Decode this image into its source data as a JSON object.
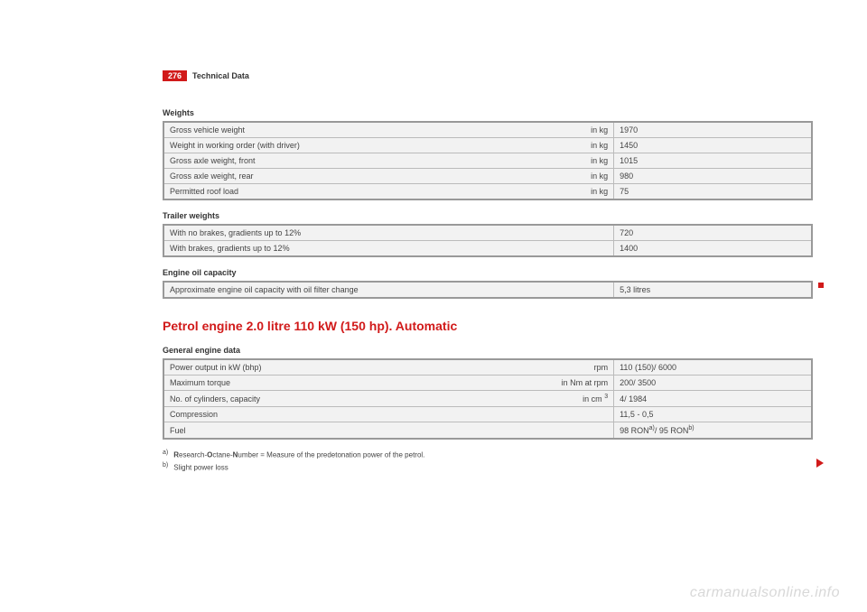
{
  "page": {
    "number": "276",
    "section": "Technical Data"
  },
  "weights": {
    "title": "Weights",
    "rows": [
      {
        "label": "Gross vehicle weight",
        "unit": "in kg",
        "value": "1970"
      },
      {
        "label": "Weight in working order (with driver)",
        "unit": "in kg",
        "value": "1450"
      },
      {
        "label": "Gross axle weight, front",
        "unit": "in kg",
        "value": "1015"
      },
      {
        "label": "Gross axle weight, rear",
        "unit": "in kg",
        "value": "980"
      },
      {
        "label": "Permitted roof load",
        "unit": "in kg",
        "value": "75"
      }
    ]
  },
  "trailer": {
    "title": "Trailer weights",
    "rows": [
      {
        "label": "With no brakes, gradients up to 12%",
        "unit": "",
        "value": "720"
      },
      {
        "label": "With brakes, gradients up to 12%",
        "unit": "",
        "value": "1400"
      }
    ]
  },
  "oil": {
    "title": "Engine oil capacity",
    "rows": [
      {
        "label": "Approximate engine oil capacity with oil filter change",
        "unit": "",
        "value": "5,3 litres"
      }
    ]
  },
  "heading": "Petrol engine 2.0 litre 110 kW (150 hp). Automatic",
  "engine": {
    "title": "General engine data",
    "rows": [
      {
        "label": "Power output in kW (bhp)",
        "unit": "rpm",
        "value": "110 (150)/ 6000"
      },
      {
        "label": "Maximum torque",
        "unit": "in Nm at rpm",
        "value": "200/ 3500"
      },
      {
        "label": "No. of cylinders, capacity",
        "unit_html": "in cm <sup>3</sup>",
        "value": "4/ 1984"
      },
      {
        "label": "Compression",
        "unit": "",
        "value": "11,5 - 0,5"
      },
      {
        "label": "Fuel",
        "unit": "",
        "value_html": "98 RON<sup>a)</sup>/ 95 RON<sup>b)</sup>"
      }
    ]
  },
  "footnotes": {
    "a_html": "<b>R</b>esearch-<b>O</b>ctane-<b>N</b>umber = Measure of the predetonation power of the petrol.",
    "b": "Slight power loss"
  },
  "watermark": "carmanualsonline.info"
}
